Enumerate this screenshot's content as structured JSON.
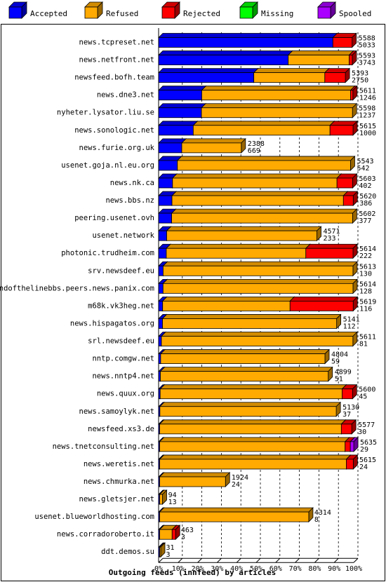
{
  "chart_data": {
    "type": "bar",
    "orientation": "horizontal",
    "stacked": true,
    "normalized_percent": true,
    "title": "",
    "xlabel": "Outgoing feeds (innfeed) by articles",
    "xlim": [
      0,
      100
    ],
    "x_ticks": [
      "0%",
      "10%",
      "20%",
      "30%",
      "40%",
      "50%",
      "60%",
      "70%",
      "80%",
      "90%",
      "100%"
    ],
    "grid": true,
    "legend": {
      "position": "top",
      "entries": [
        {
          "name": "Accepted",
          "color": "#0000ff"
        },
        {
          "name": "Refused",
          "color": "#ffaa00"
        },
        {
          "name": "Rejected",
          "color": "#ff0000"
        },
        {
          "name": "Missing",
          "color": "#00ff00"
        },
        {
          "name": "Spooled",
          "color": "#aa00ff"
        }
      ]
    },
    "max_total": 5635,
    "rows": [
      {
        "name": "news.tcpreset.net",
        "total": "5588",
        "accepted": "5033",
        "refused": 0,
        "rejected": 555,
        "spooled": 0
      },
      {
        "name": "news.netfront.net",
        "total": "5593",
        "accepted": "3743",
        "refused": 1760,
        "rejected": 90,
        "spooled": 0
      },
      {
        "name": "newsfeed.bofh.team",
        "total": "5393",
        "accepted": "2750",
        "refused": 2050,
        "rejected": 593,
        "spooled": 0
      },
      {
        "name": "news.dne3.net",
        "total": "5611",
        "accepted": "1246",
        "refused": 4300,
        "rejected": 65,
        "spooled": 0
      },
      {
        "name": "nyheter.lysator.liu.se",
        "total": "5598",
        "accepted": "1237",
        "refused": 4361,
        "rejected": 0,
        "spooled": 0
      },
      {
        "name": "news.sonologic.net",
        "total": "5615",
        "accepted": "1000",
        "refused": 3950,
        "rejected": 665,
        "spooled": 0
      },
      {
        "name": "news.furie.org.uk",
        "total": "2388",
        "accepted": "669",
        "refused": 1719,
        "rejected": 0,
        "spooled": 0
      },
      {
        "name": "usenet.goja.nl.eu.org",
        "total": "5543",
        "accepted": "542",
        "refused": 5001,
        "rejected": 0,
        "spooled": 0
      },
      {
        "name": "news.nk.ca",
        "total": "5603",
        "accepted": "402",
        "refused": 4750,
        "rejected": 451,
        "spooled": 0
      },
      {
        "name": "news.bbs.nz",
        "total": "5620",
        "accepted": "386",
        "refused": 4951,
        "rejected": 283,
        "spooled": 0
      },
      {
        "name": "peering.usenet.ovh",
        "total": "5602",
        "accepted": "377",
        "refused": 5225,
        "rejected": 0,
        "spooled": 0
      },
      {
        "name": "usenet.network",
        "total": "4571",
        "accepted": "233",
        "refused": 4338,
        "rejected": 0,
        "spooled": 0
      },
      {
        "name": "photonic.trudheim.com",
        "total": "5614",
        "accepted": "222",
        "refused": 4030,
        "rejected": 1362,
        "spooled": 0
      },
      {
        "name": "srv.newsdeef.eu",
        "total": "5613",
        "accepted": "130",
        "refused": 5483,
        "rejected": 0,
        "spooled": 0
      },
      {
        "name": "endofthelinebbs.peers.news.panix.com",
        "total": "5614",
        "accepted": "128",
        "refused": 5486,
        "rejected": 0,
        "spooled": 0
      },
      {
        "name": "m68k.vk3heg.net",
        "total": "5619",
        "accepted": "116",
        "refused": 3680,
        "rejected": 1823,
        "spooled": 0
      },
      {
        "name": "news.hispagatos.org",
        "total": "5141",
        "accepted": "112",
        "refused": 5029,
        "rejected": 0,
        "spooled": 0
      },
      {
        "name": "srl.newsdeef.eu",
        "total": "5611",
        "accepted": "81",
        "refused": 5530,
        "rejected": 0,
        "spooled": 0
      },
      {
        "name": "nntp.comgw.net",
        "total": "4804",
        "accepted": "59",
        "refused": 4745,
        "rejected": 0,
        "spooled": 0
      },
      {
        "name": "news.nntp4.net",
        "total": "4899",
        "accepted": "51",
        "refused": 4848,
        "rejected": 0,
        "spooled": 0
      },
      {
        "name": "news.quux.org",
        "total": "5600",
        "accepted": "45",
        "refused": 5255,
        "rejected": 300,
        "spooled": 0
      },
      {
        "name": "news.samoylyk.net",
        "total": "5130",
        "accepted": "37",
        "refused": 5093,
        "rejected": 0,
        "spooled": 0
      },
      {
        "name": "newsfeed.xs3.de",
        "total": "5577",
        "accepted": "30",
        "refused": 5247,
        "rejected": 300,
        "spooled": 0
      },
      {
        "name": "news.tnetconsulting.net",
        "total": "5635",
        "accepted": "29",
        "refused": 5356,
        "rejected": 150,
        "spooled": 100
      },
      {
        "name": "news.weretis.net",
        "total": "5615",
        "accepted": "24",
        "refused": 5391,
        "rejected": 200,
        "spooled": 0
      },
      {
        "name": "news.chmurka.net",
        "total": "1924",
        "accepted": "24",
        "refused": 1900,
        "rejected": 0,
        "spooled": 0
      },
      {
        "name": "news.gletsjer.net",
        "total": "94",
        "accepted": "13",
        "refused": 81,
        "rejected": 0,
        "spooled": 0
      },
      {
        "name": "usenet.blueworldhosting.com",
        "total": "4314",
        "accepted": "8",
        "refused": 4306,
        "rejected": 0,
        "spooled": 0
      },
      {
        "name": "news.corradoroberto.it",
        "total": "463",
        "accepted": "3",
        "refused": 360,
        "rejected": 100,
        "spooled": 0
      },
      {
        "name": "ddt.demos.su",
        "total": "31",
        "accepted": "3",
        "refused": 28,
        "rejected": 0,
        "spooled": 0
      }
    ]
  }
}
